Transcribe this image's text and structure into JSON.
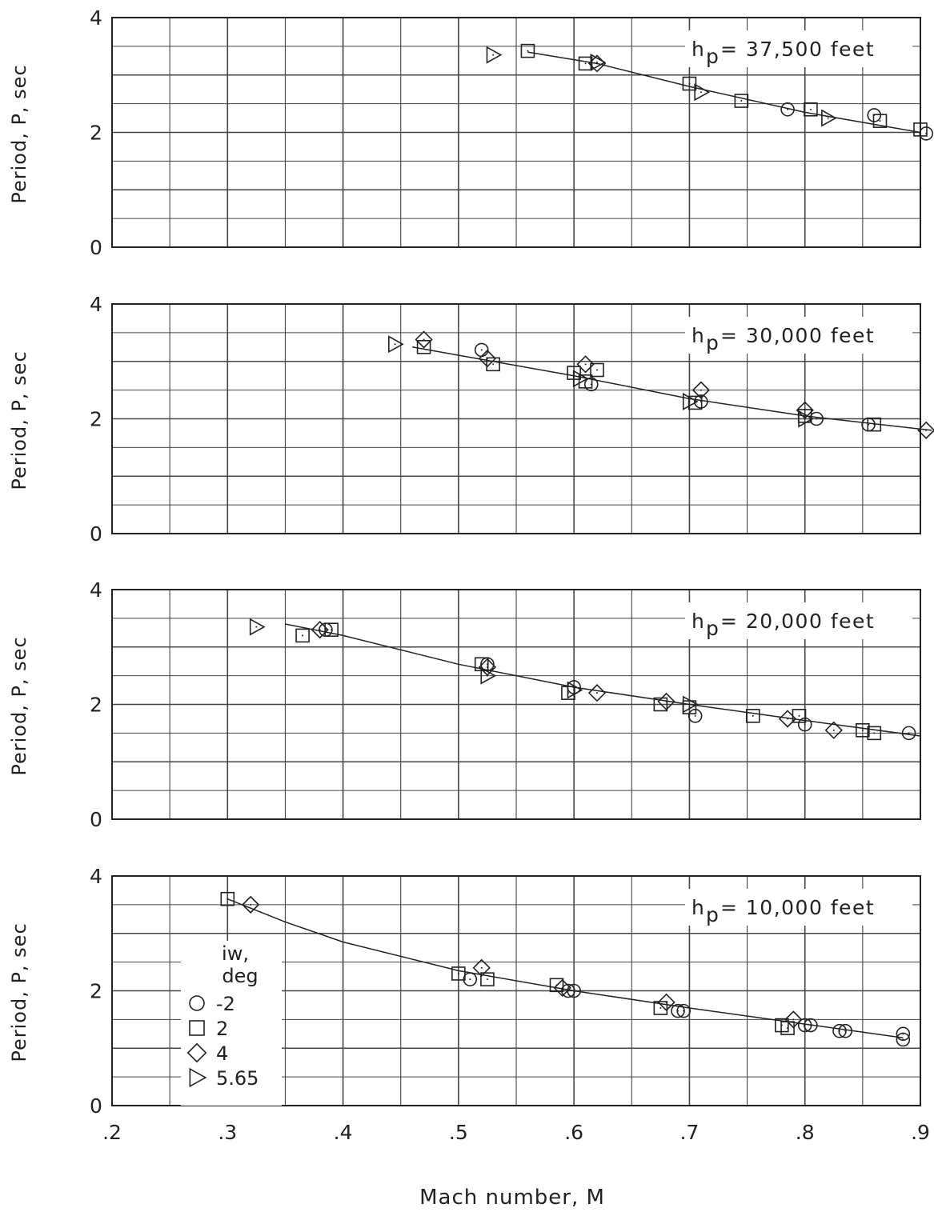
{
  "chart_data": {
    "type": "scatter",
    "xlabel": "Mach number, M",
    "x_ticks": [
      ".2",
      ".3",
      ".4",
      ".5",
      ".6",
      ".7",
      ".8",
      ".9"
    ],
    "xlim": [
      0.2,
      0.9
    ],
    "ylim": [
      0,
      4
    ],
    "grid": true,
    "legend": {
      "title_line1": "iw,",
      "title_line2": "deg",
      "placement": "bottom-left of lowest panel",
      "entries": [
        {
          "marker": "circle",
          "label": "-2"
        },
        {
          "marker": "square",
          "label": "2"
        },
        {
          "marker": "diamond",
          "label": "4"
        },
        {
          "marker": "triangle-right",
          "label": "5.65"
        }
      ]
    },
    "panels": [
      {
        "label_main": "h",
        "label_sub": "p",
        "label_rest": "= 37,500  feet",
        "ylabel": "Period, P, sec",
        "y_ticks": [
          "4",
          "2",
          "0"
        ],
        "curve": [
          [
            0.56,
            3.4
          ],
          [
            0.62,
            3.2
          ],
          [
            0.7,
            2.8
          ],
          [
            0.8,
            2.35
          ],
          [
            0.9,
            2.0
          ]
        ],
        "points": [
          {
            "x": 0.53,
            "y": 3.35,
            "marker": "triangle-right"
          },
          {
            "x": 0.56,
            "y": 3.42,
            "marker": "square"
          },
          {
            "x": 0.61,
            "y": 3.2,
            "marker": "square"
          },
          {
            "x": 0.62,
            "y": 3.2,
            "marker": "diamond"
          },
          {
            "x": 0.62,
            "y": 3.22,
            "marker": "triangle-right"
          },
          {
            "x": 0.7,
            "y": 2.85,
            "marker": "square"
          },
          {
            "x": 0.71,
            "y": 2.7,
            "marker": "triangle-right"
          },
          {
            "x": 0.745,
            "y": 2.55,
            "marker": "square"
          },
          {
            "x": 0.785,
            "y": 2.4,
            "marker": "circle"
          },
          {
            "x": 0.805,
            "y": 2.4,
            "marker": "square"
          },
          {
            "x": 0.82,
            "y": 2.25,
            "marker": "triangle-right"
          },
          {
            "x": 0.86,
            "y": 2.3,
            "marker": "circle"
          },
          {
            "x": 0.865,
            "y": 2.2,
            "marker": "square"
          },
          {
            "x": 0.9,
            "y": 2.05,
            "marker": "square"
          },
          {
            "x": 0.905,
            "y": 1.98,
            "marker": "circle"
          }
        ]
      },
      {
        "label_main": "h",
        "label_sub": "p",
        "label_rest": "= 30,000  feet",
        "ylabel": "Period, P, sec",
        "y_ticks": [
          "4",
          "2",
          "0"
        ],
        "curve": [
          [
            0.46,
            3.25
          ],
          [
            0.53,
            3.0
          ],
          [
            0.6,
            2.75
          ],
          [
            0.7,
            2.35
          ],
          [
            0.8,
            2.05
          ],
          [
            0.91,
            1.8
          ]
        ],
        "points": [
          {
            "x": 0.445,
            "y": 3.3,
            "marker": "triangle-right"
          },
          {
            "x": 0.47,
            "y": 3.38,
            "marker": "diamond"
          },
          {
            "x": 0.47,
            "y": 3.25,
            "marker": "square"
          },
          {
            "x": 0.52,
            "y": 3.2,
            "marker": "circle"
          },
          {
            "x": 0.525,
            "y": 3.05,
            "marker": "diamond"
          },
          {
            "x": 0.53,
            "y": 2.95,
            "marker": "square"
          },
          {
            "x": 0.6,
            "y": 2.8,
            "marker": "square"
          },
          {
            "x": 0.61,
            "y": 2.95,
            "marker": "diamond"
          },
          {
            "x": 0.605,
            "y": 2.7,
            "marker": "triangle-right"
          },
          {
            "x": 0.61,
            "y": 2.65,
            "marker": "square"
          },
          {
            "x": 0.615,
            "y": 2.6,
            "marker": "circle"
          },
          {
            "x": 0.62,
            "y": 2.85,
            "marker": "square"
          },
          {
            "x": 0.7,
            "y": 2.3,
            "marker": "triangle-right"
          },
          {
            "x": 0.705,
            "y": 2.28,
            "marker": "square"
          },
          {
            "x": 0.71,
            "y": 2.5,
            "marker": "diamond"
          },
          {
            "x": 0.71,
            "y": 2.3,
            "marker": "circle"
          },
          {
            "x": 0.8,
            "y": 2.15,
            "marker": "diamond"
          },
          {
            "x": 0.8,
            "y": 2.0,
            "marker": "triangle-right"
          },
          {
            "x": 0.8,
            "y": 2.05,
            "marker": "square"
          },
          {
            "x": 0.81,
            "y": 2.0,
            "marker": "circle"
          },
          {
            "x": 0.855,
            "y": 1.9,
            "marker": "circle"
          },
          {
            "x": 0.86,
            "y": 1.9,
            "marker": "square"
          },
          {
            "x": 0.905,
            "y": 1.8,
            "marker": "diamond"
          }
        ]
      },
      {
        "label_main": "h",
        "label_sub": "p",
        "label_rest": "= 20,000  feet",
        "ylabel": "Period, P, sec",
        "y_ticks": [
          "4",
          "2",
          "0"
        ],
        "curve": [
          [
            0.35,
            3.4
          ],
          [
            0.4,
            3.2
          ],
          [
            0.5,
            2.7
          ],
          [
            0.6,
            2.3
          ],
          [
            0.7,
            2.0
          ],
          [
            0.8,
            1.72
          ],
          [
            0.9,
            1.45
          ]
        ],
        "points": [
          {
            "x": 0.325,
            "y": 3.35,
            "marker": "triangle-right"
          },
          {
            "x": 0.365,
            "y": 3.2,
            "marker": "square"
          },
          {
            "x": 0.38,
            "y": 3.3,
            "marker": "diamond"
          },
          {
            "x": 0.385,
            "y": 3.3,
            "marker": "circle"
          },
          {
            "x": 0.39,
            "y": 3.3,
            "marker": "square"
          },
          {
            "x": 0.52,
            "y": 2.7,
            "marker": "square"
          },
          {
            "x": 0.525,
            "y": 2.7,
            "marker": "circle"
          },
          {
            "x": 0.525,
            "y": 2.65,
            "marker": "diamond"
          },
          {
            "x": 0.525,
            "y": 2.5,
            "marker": "triangle-right"
          },
          {
            "x": 0.595,
            "y": 2.2,
            "marker": "square"
          },
          {
            "x": 0.6,
            "y": 2.3,
            "marker": "circle"
          },
          {
            "x": 0.6,
            "y": 2.25,
            "marker": "triangle-right"
          },
          {
            "x": 0.62,
            "y": 2.2,
            "marker": "diamond"
          },
          {
            "x": 0.675,
            "y": 2.0,
            "marker": "square"
          },
          {
            "x": 0.68,
            "y": 2.05,
            "marker": "diamond"
          },
          {
            "x": 0.7,
            "y": 2.0,
            "marker": "triangle-right"
          },
          {
            "x": 0.7,
            "y": 1.95,
            "marker": "square"
          },
          {
            "x": 0.705,
            "y": 1.8,
            "marker": "circle"
          },
          {
            "x": 0.755,
            "y": 1.8,
            "marker": "square"
          },
          {
            "x": 0.785,
            "y": 1.75,
            "marker": "diamond"
          },
          {
            "x": 0.795,
            "y": 1.8,
            "marker": "square"
          },
          {
            "x": 0.8,
            "y": 1.65,
            "marker": "circle"
          },
          {
            "x": 0.825,
            "y": 1.55,
            "marker": "diamond"
          },
          {
            "x": 0.85,
            "y": 1.55,
            "marker": "square"
          },
          {
            "x": 0.86,
            "y": 1.5,
            "marker": "square"
          },
          {
            "x": 0.89,
            "y": 1.5,
            "marker": "circle"
          }
        ]
      },
      {
        "label_main": "h",
        "label_sub": "p",
        "label_rest": "= 10,000  feet",
        "ylabel": "Period, P, sec",
        "y_ticks": [
          "4",
          "2",
          "0"
        ],
        "curve": [
          [
            0.3,
            3.6
          ],
          [
            0.35,
            3.2
          ],
          [
            0.4,
            2.85
          ],
          [
            0.5,
            2.35
          ],
          [
            0.6,
            2.0
          ],
          [
            0.7,
            1.7
          ],
          [
            0.8,
            1.42
          ],
          [
            0.885,
            1.18
          ]
        ],
        "points": [
          {
            "x": 0.3,
            "y": 3.6,
            "marker": "square"
          },
          {
            "x": 0.32,
            "y": 3.5,
            "marker": "diamond"
          },
          {
            "x": 0.5,
            "y": 2.3,
            "marker": "square"
          },
          {
            "x": 0.51,
            "y": 2.2,
            "marker": "circle"
          },
          {
            "x": 0.52,
            "y": 2.4,
            "marker": "diamond"
          },
          {
            "x": 0.525,
            "y": 2.2,
            "marker": "square"
          },
          {
            "x": 0.585,
            "y": 2.1,
            "marker": "square"
          },
          {
            "x": 0.59,
            "y": 2.05,
            "marker": "diamond"
          },
          {
            "x": 0.595,
            "y": 2.0,
            "marker": "circle"
          },
          {
            "x": 0.6,
            "y": 2.0,
            "marker": "circle"
          },
          {
            "x": 0.675,
            "y": 1.7,
            "marker": "square"
          },
          {
            "x": 0.68,
            "y": 1.8,
            "marker": "diamond"
          },
          {
            "x": 0.69,
            "y": 1.65,
            "marker": "circle"
          },
          {
            "x": 0.695,
            "y": 1.65,
            "marker": "circle"
          },
          {
            "x": 0.78,
            "y": 1.4,
            "marker": "square"
          },
          {
            "x": 0.785,
            "y": 1.35,
            "marker": "square"
          },
          {
            "x": 0.79,
            "y": 1.5,
            "marker": "diamond"
          },
          {
            "x": 0.8,
            "y": 1.4,
            "marker": "circle"
          },
          {
            "x": 0.805,
            "y": 1.4,
            "marker": "circle"
          },
          {
            "x": 0.83,
            "y": 1.3,
            "marker": "circle"
          },
          {
            "x": 0.835,
            "y": 1.3,
            "marker": "circle"
          },
          {
            "x": 0.885,
            "y": 1.25,
            "marker": "circle"
          },
          {
            "x": 0.885,
            "y": 1.15,
            "marker": "circle"
          }
        ]
      }
    ]
  }
}
